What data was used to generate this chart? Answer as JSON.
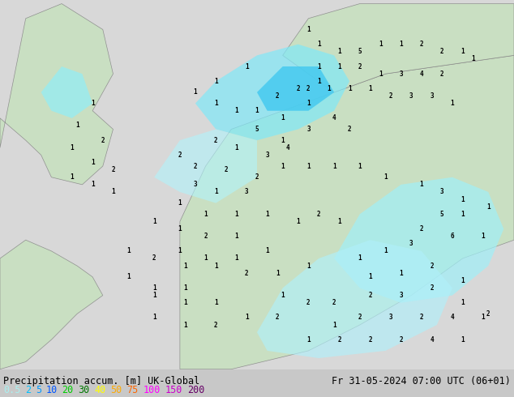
{
  "title_left": "Precipitation accum. [m] UK-Global",
  "title_right": "Fr 31-05-2024 07:00 UTC (06+01)",
  "colorbar_labels": [
    "0.5",
    "2",
    "5",
    "10",
    "20",
    "30",
    "40",
    "50",
    "75",
    "100",
    "150",
    "200"
  ],
  "colorbar_colors": [
    "#aaf0f0",
    "#00bfff",
    "#0099ff",
    "#0055ff",
    "#00cc00",
    "#007700",
    "#ffff00",
    "#ffaa00",
    "#ff6600",
    "#ff00ff",
    "#cc00cc",
    "#660066"
  ],
  "background_color": "#e8e8e8",
  "map_bg_color": "#d8efd8",
  "sea_color": "#f0f0f0",
  "fig_width": 6.34,
  "fig_height": 4.9,
  "dpi": 100,
  "font_color_left": "#000000",
  "font_color_right": "#000000",
  "label_fontsize": 8.5,
  "title_fontsize": 8.5
}
